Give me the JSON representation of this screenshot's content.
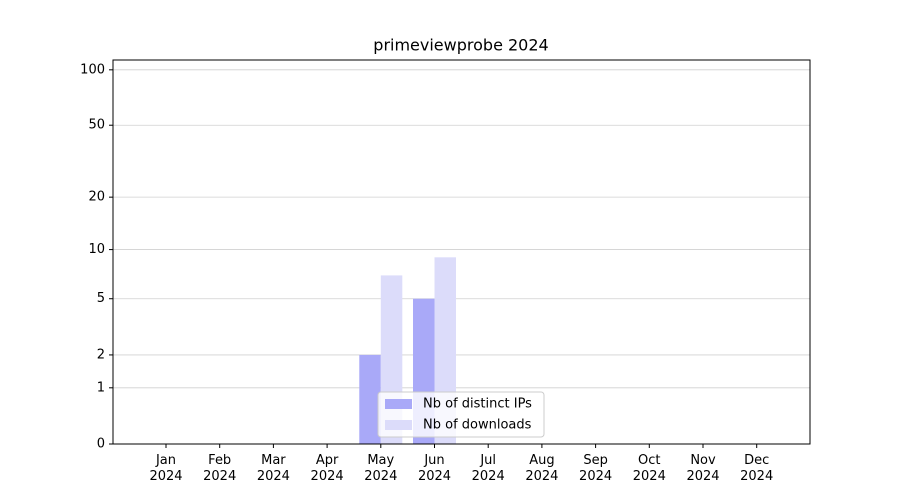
{
  "chart_data": {
    "type": "bar",
    "title": "primeviewprobe 2024",
    "categories": [
      "Jan 2024",
      "Feb 2024",
      "Mar 2024",
      "Apr 2024",
      "May 2024",
      "Jun 2024",
      "Jul 2024",
      "Aug 2024",
      "Sep 2024",
      "Oct 2024",
      "Nov 2024",
      "Dec 2024"
    ],
    "series": [
      {
        "name": "Nb of distinct IPs",
        "color": "#a9a9f8",
        "values": [
          0,
          0,
          0,
          0,
          2,
          5,
          0,
          0,
          0,
          0,
          0,
          0
        ]
      },
      {
        "name": "Nb of downloads",
        "color": "#dcdcfa",
        "values": [
          0,
          0,
          0,
          0,
          7,
          9,
          0,
          0,
          0,
          0,
          0,
          0
        ]
      }
    ],
    "yscale": "log1p",
    "ylim": [
      0,
      113
    ],
    "yticks": [
      0,
      1,
      2,
      5,
      10,
      20,
      50,
      100
    ],
    "grid": true,
    "legend": "lower center"
  }
}
